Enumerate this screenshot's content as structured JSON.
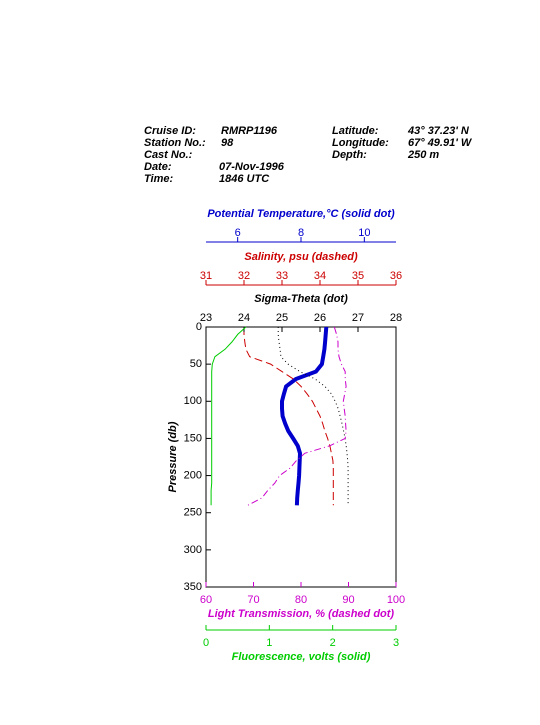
{
  "header": {
    "left": [
      {
        "label": "Cruise ID:",
        "value": "RMRP1196"
      },
      {
        "label": "Station No.:",
        "value": "98"
      },
      {
        "label": "Cast No.:"
      },
      {
        "label": "Date:",
        "value": "07-Nov-1996"
      },
      {
        "label": "Time:",
        "value": "1846 UTC"
      }
    ],
    "right": [
      {
        "label": "Latitude:",
        "value": "43° 37.23' N"
      },
      {
        "label": "Longitude:",
        "value": "67° 49.91' W"
      },
      {
        "label": "Depth:",
        "value": "250 m"
      }
    ]
  },
  "chart_data": {
    "type": "profile",
    "ylabel": "Pressure (db)",
    "ylim": [
      0,
      350
    ],
    "yticks": [
      0,
      50,
      100,
      150,
      200,
      250,
      300,
      350
    ],
    "y_inverted": true,
    "pressure": [
      0,
      10,
      20,
      30,
      40,
      50,
      60,
      70,
      80,
      90,
      100,
      110,
      120,
      130,
      140,
      150,
      160,
      170,
      180,
      190,
      200,
      210,
      220,
      230,
      240
    ],
    "axes": [
      {
        "label": "Potential Temperature,°C (solid dot)",
        "color": "#0000cc",
        "style": "thick",
        "lim": [
          5,
          11
        ],
        "ticks": [
          6,
          8,
          10
        ],
        "values": [
          8.8,
          8.78,
          8.76,
          8.74,
          8.7,
          8.66,
          8.47,
          7.84,
          7.53,
          7.46,
          7.4,
          7.4,
          7.42,
          7.5,
          7.6,
          7.75,
          7.9,
          7.97,
          7.96,
          7.95,
          7.94,
          7.92,
          7.9,
          7.88,
          7.87
        ]
      },
      {
        "label": "Salinity, psu  (dashed)",
        "color": "#cc0000",
        "style": "dashed",
        "lim": [
          31,
          36
        ],
        "ticks": [
          31,
          32,
          33,
          34,
          35,
          36
        ],
        "values": [
          32.0,
          32.0,
          32.02,
          32.05,
          32.15,
          32.7,
          33.0,
          33.3,
          33.5,
          33.66,
          33.8,
          33.9,
          34.0,
          34.07,
          34.13,
          34.2,
          34.26,
          34.3,
          34.34,
          34.35,
          34.35,
          34.35,
          34.35,
          34.35,
          34.35
        ]
      },
      {
        "label": "Sigma-Theta (dot)",
        "color": "#000000",
        "style": "dotted",
        "lim": [
          23,
          28
        ],
        "ticks": [
          23,
          24,
          25,
          26,
          27,
          28
        ],
        "values": [
          24.9,
          24.9,
          24.92,
          24.95,
          24.97,
          25.16,
          25.47,
          25.87,
          26.13,
          26.3,
          26.4,
          26.48,
          26.53,
          26.58,
          26.62,
          26.66,
          26.69,
          26.71,
          26.73,
          26.74,
          26.74,
          26.74,
          26.74,
          26.74,
          26.74
        ]
      },
      {
        "label": "Light Transmission, % (dashed dot)",
        "color": "#cc00cc",
        "style": "dashdot",
        "lim": [
          60,
          100
        ],
        "ticks": [
          60,
          70,
          80,
          90,
          100
        ],
        "values": [
          87,
          87.5,
          87.8,
          87.8,
          88,
          88.5,
          89.3,
          89.3,
          89.5,
          89.2,
          88.9,
          89.1,
          89.3,
          89.4,
          89.5,
          89.3,
          86,
          80.8,
          79,
          77.7,
          75.5,
          74.5,
          73,
          71.8,
          68.8
        ]
      },
      {
        "label": "Fluorescence, volts (solid)",
        "color": "#00cc00",
        "style": "solid",
        "lim": [
          0,
          3
        ],
        "ticks": [
          0,
          1,
          2,
          3
        ],
        "values": [
          0.63,
          0.5,
          0.41,
          0.3,
          0.14,
          0.1,
          0.09,
          0.09,
          0.09,
          0.09,
          0.09,
          0.09,
          0.09,
          0.09,
          0.09,
          0.09,
          0.09,
          0.09,
          0.09,
          0.09,
          0.09,
          0.09,
          0.08,
          0.08,
          0.08
        ]
      }
    ]
  }
}
